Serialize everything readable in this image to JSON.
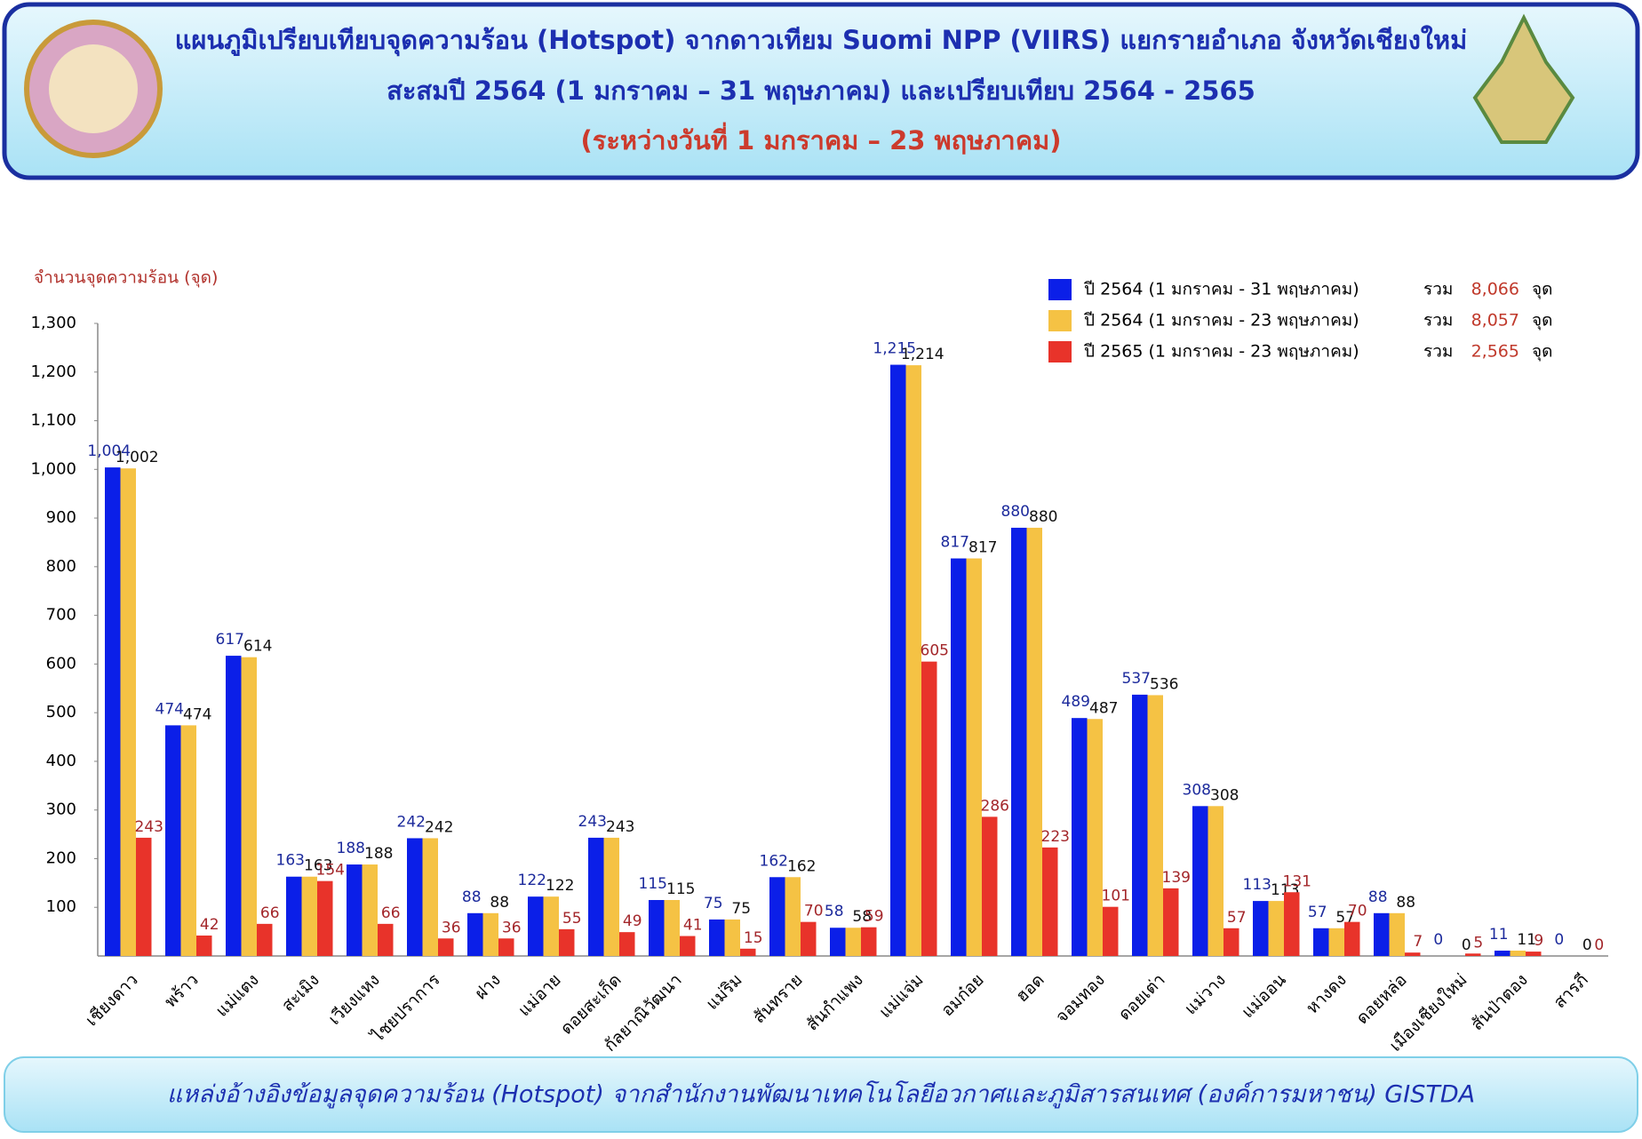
{
  "header": {
    "lines": [
      "แผนภูมิเปรียบเทียบจุดความร้อน (Hotspot) จากดาวเทียม Suomi NPP (VIIRS) แยกรายอำเภอ จังหวัดเชียงใหม่",
      "สะสมปี 2564 (1 มกราคม – 31 พฤษภาคม) และเปรียบเทียบ  2564 - 2565",
      "(ระหว่างวันที่ 1 มกราคม – 23 พฤษภาคม)"
    ]
  },
  "chart_data": {
    "type": "bar",
    "y_label": "จำนวนจุดความร้อน (จุด)",
    "categories": [
      "เชียงดาว",
      "พร้าว",
      "แม่แตง",
      "สะเมิง",
      "เวียงแหง",
      "ไชยปราการ",
      "ฝาง",
      "แม่อาย",
      "ดอยสะเก็ด",
      "กัลยาณิวัฒนา",
      "แม่ริม",
      "สันทราย",
      "สันกำแพง",
      "แม่แจ่ม",
      "อมก๋อย",
      "ฮอด",
      "จอมทอง",
      "ดอยเต่า",
      "แม่วาง",
      "แม่ออน",
      "หางดง",
      "ดอยหล่อ",
      "เมืองเชียงใหม่",
      "สันป่าตอง",
      "สารภี"
    ],
    "series": [
      {
        "name": "ปี 2564 (1 มกราคม - 31 พฤษภาคม)",
        "color": "#0b1fe8",
        "label_color": "#1c2a9c",
        "total": {
          "value": 8066,
          "label": "8,066"
        },
        "values": [
          1004,
          474,
          617,
          163,
          188,
          242,
          88,
          122,
          243,
          115,
          75,
          162,
          58,
          1215,
          817,
          880,
          489,
          537,
          308,
          113,
          57,
          88,
          0,
          11,
          0
        ],
        "value_labels": [
          "1,004",
          "474",
          "617",
          "163",
          "188",
          "242",
          "88",
          "122",
          "243",
          "115",
          "75",
          "162",
          "58",
          "1,215",
          "817",
          "880",
          "489",
          "537",
          "308",
          "113",
          "57",
          "88",
          "0",
          "11",
          "0"
        ]
      },
      {
        "name": "ปี 2564 (1 มกราคม - 23 พฤษภาคม)",
        "color": "#f5c244",
        "label_color": "#111111",
        "total": {
          "value": 8057,
          "label": "8,057"
        },
        "values": [
          1002,
          474,
          614,
          163,
          188,
          242,
          88,
          122,
          243,
          115,
          75,
          162,
          58,
          1214,
          817,
          880,
          487,
          536,
          308,
          113,
          57,
          88,
          0,
          11,
          0
        ],
        "value_labels": [
          "1,002",
          "474",
          "614",
          "163",
          "188",
          "242",
          "88",
          "122",
          "243",
          "115",
          "75",
          "162",
          "58",
          "1,214",
          "817",
          "880",
          "487",
          "536",
          "308",
          "113",
          "57",
          "88",
          "0",
          "11",
          "0"
        ]
      },
      {
        "name": "ปี 2565 (1 มกราคม - 23 พฤษภาคม)",
        "color": "#e8332a",
        "label_color": "#a3262a",
        "total": {
          "value": 2565,
          "label": "2,565"
        },
        "values": [
          243,
          42,
          66,
          154,
          66,
          36,
          36,
          55,
          49,
          41,
          15,
          70,
          59,
          605,
          286,
          223,
          101,
          139,
          57,
          131,
          70,
          7,
          5,
          9,
          0
        ]
      }
    ],
    "legend_prefix": "รวม",
    "legend_unit": "จุด",
    "ylim": [
      0,
      1300
    ],
    "yticks": [
      100,
      200,
      300,
      400,
      500,
      600,
      700,
      800,
      900,
      {
        "value": 1000,
        "label": "1,000"
      },
      {
        "value": 1100,
        "label": "1,100"
      },
      {
        "value": 1200,
        "label": "1,200"
      },
      {
        "value": 1300,
        "label": "1,300"
      }
    ]
  },
  "footer": {
    "source": "แหล่งอ้างอิงข้อมูลจุดความร้อน (Hotspot) จากสำนักงานพัฒนาเทคโนโลยีอวกาศและภูมิสารสนเทศ (องค์การมหาชน) GISTDA"
  }
}
